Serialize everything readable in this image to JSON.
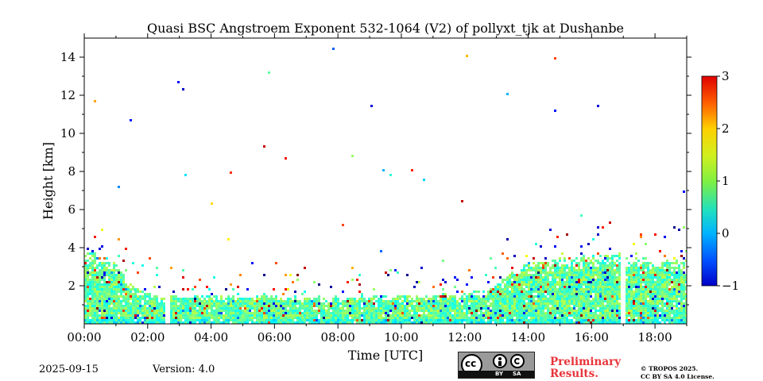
{
  "chart_data": {
    "type": "heatmap",
    "title": "Quasi BSC Angstroem Exponent 532-1064 (V2) of pollyxt_tjk at Dushanbe",
    "xlabel": "Time [UTC]",
    "ylabel": "Height [km]",
    "xlim_hours": [
      0,
      19
    ],
    "ylim_km": [
      0,
      15
    ],
    "x_ticks": [
      {
        "hour": 0,
        "label": "00:00"
      },
      {
        "hour": 2,
        "label": "02:00"
      },
      {
        "hour": 4,
        "label": "04:00"
      },
      {
        "hour": 6,
        "label": "06:00"
      },
      {
        "hour": 8,
        "label": "08:00"
      },
      {
        "hour": 10,
        "label": "10:00"
      },
      {
        "hour": 12,
        "label": "12:00"
      },
      {
        "hour": 14,
        "label": "14:00"
      },
      {
        "hour": 16,
        "label": "16:00"
      },
      {
        "hour": 18,
        "label": "18:00"
      }
    ],
    "y_ticks": [
      {
        "km": 2,
        "label": "2"
      },
      {
        "km": 4,
        "label": "4"
      },
      {
        "km": 6,
        "label": "6"
      },
      {
        "km": 8,
        "label": "8"
      },
      {
        "km": 10,
        "label": "10"
      },
      {
        "km": 12,
        "label": "12"
      },
      {
        "km": 14,
        "label": "14"
      }
    ],
    "colorbar": {
      "range": [
        -1,
        3
      ],
      "ticks": [
        {
          "value": 3,
          "label": "3"
        },
        {
          "value": 2,
          "label": "2"
        },
        {
          "value": 1,
          "label": "1"
        },
        {
          "value": 0,
          "label": "0"
        },
        {
          "value": -1,
          "label": "−1"
        }
      ],
      "colormap": "jet"
    },
    "layer_top_profile": [
      {
        "hour": 0.0,
        "top_km": 3.7
      },
      {
        "hour": 0.5,
        "top_km": 3.7
      },
      {
        "hour": 1.0,
        "top_km": 3.2
      },
      {
        "hour": 1.5,
        "top_km": 2.0
      },
      {
        "hour": 2.0,
        "top_km": 1.6
      },
      {
        "hour": 2.6,
        "top_km": 1.5
      },
      {
        "hour": 4.0,
        "top_km": 1.5
      },
      {
        "hour": 6.0,
        "top_km": 1.5
      },
      {
        "hour": 8.0,
        "top_km": 1.4
      },
      {
        "hour": 10.0,
        "top_km": 1.5
      },
      {
        "hour": 12.0,
        "top_km": 1.6
      },
      {
        "hour": 13.0,
        "top_km": 2.0
      },
      {
        "hour": 13.5,
        "top_km": 2.8
      },
      {
        "hour": 14.0,
        "top_km": 3.2
      },
      {
        "hour": 15.0,
        "top_km": 3.5
      },
      {
        "hour": 16.0,
        "top_km": 3.6
      },
      {
        "hour": 17.0,
        "top_km": 3.6
      },
      {
        "hour": 18.0,
        "top_km": 3.4
      },
      {
        "hour": 19.0,
        "top_km": 3.3
      }
    ],
    "data_gaps_hours": [
      [
        2.55,
        2.7
      ],
      [
        16.95,
        17.1
      ]
    ],
    "typical_value": 0.9
  },
  "footer": {
    "date": "2025-09-15",
    "version": "Version: 4.0",
    "preliminary_line1": "Preliminary",
    "preliminary_line2": "Results.",
    "copyright_line1": "© TROPOS 2025.",
    "copyright_line2": "CC BY SA 4.0 License.",
    "license_cc": "cc",
    "license_by": "BY",
    "license_sa": "SA"
  }
}
